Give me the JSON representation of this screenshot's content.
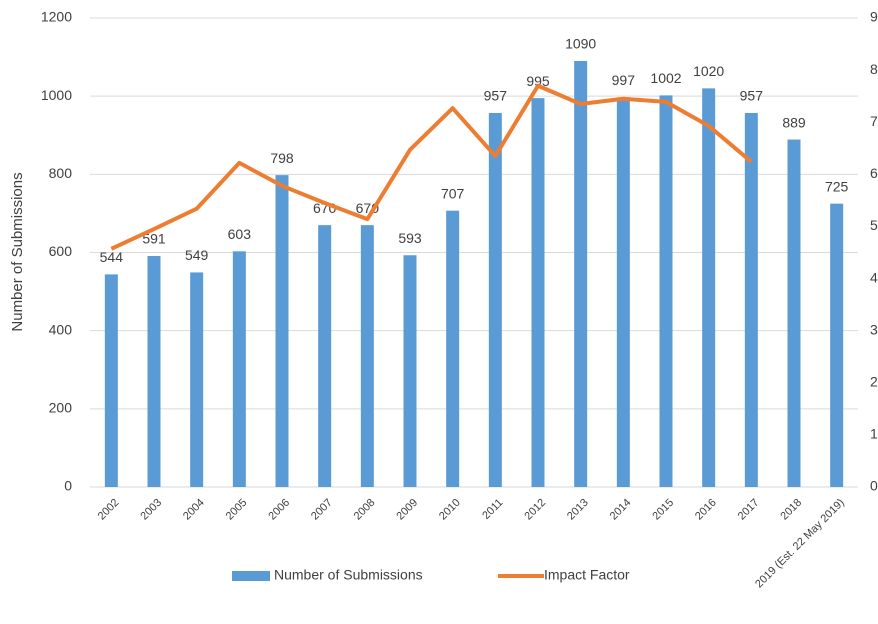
{
  "chart_data": {
    "type": "bar-line",
    "y_axis_label": "Number of Submissions",
    "categories": [
      "2002",
      "2003",
      "2004",
      "2005",
      "2006",
      "2007",
      "2008",
      "2009",
      "2010",
      "2011",
      "2012",
      "2013",
      "2014",
      "2015",
      "2016",
      "2017",
      "2018",
      "2019 (Est. 22 May 2019)"
    ],
    "series": [
      {
        "name": "Number of Submissions",
        "color": "#5b9bd5",
        "type": "bar",
        "values": [
          544,
          591,
          549,
          603,
          798,
          670,
          670,
          593,
          707,
          957,
          995,
          1090,
          997,
          1002,
          1020,
          957,
          889,
          725
        ]
      },
      {
        "name": "Impact Factor",
        "color": "#ed7d31",
        "type": "line",
        "axis": "y2",
        "values": [
          4.57,
          4.95,
          5.34,
          6.22,
          5.78,
          5.45,
          5.14,
          6.47,
          7.27,
          6.35,
          7.7,
          7.35,
          7.45,
          7.39,
          6.93,
          6.24,
          null,
          null
        ]
      }
    ],
    "ylim": [
      0,
      1200
    ],
    "yticks": [
      0,
      200,
      400,
      600,
      800,
      1000,
      1200
    ],
    "y2lim": [
      0,
      9
    ],
    "y2ticks": [
      0,
      1,
      2,
      3,
      4,
      5,
      6,
      7,
      8,
      9
    ],
    "grid": true,
    "legend": "bottom"
  }
}
